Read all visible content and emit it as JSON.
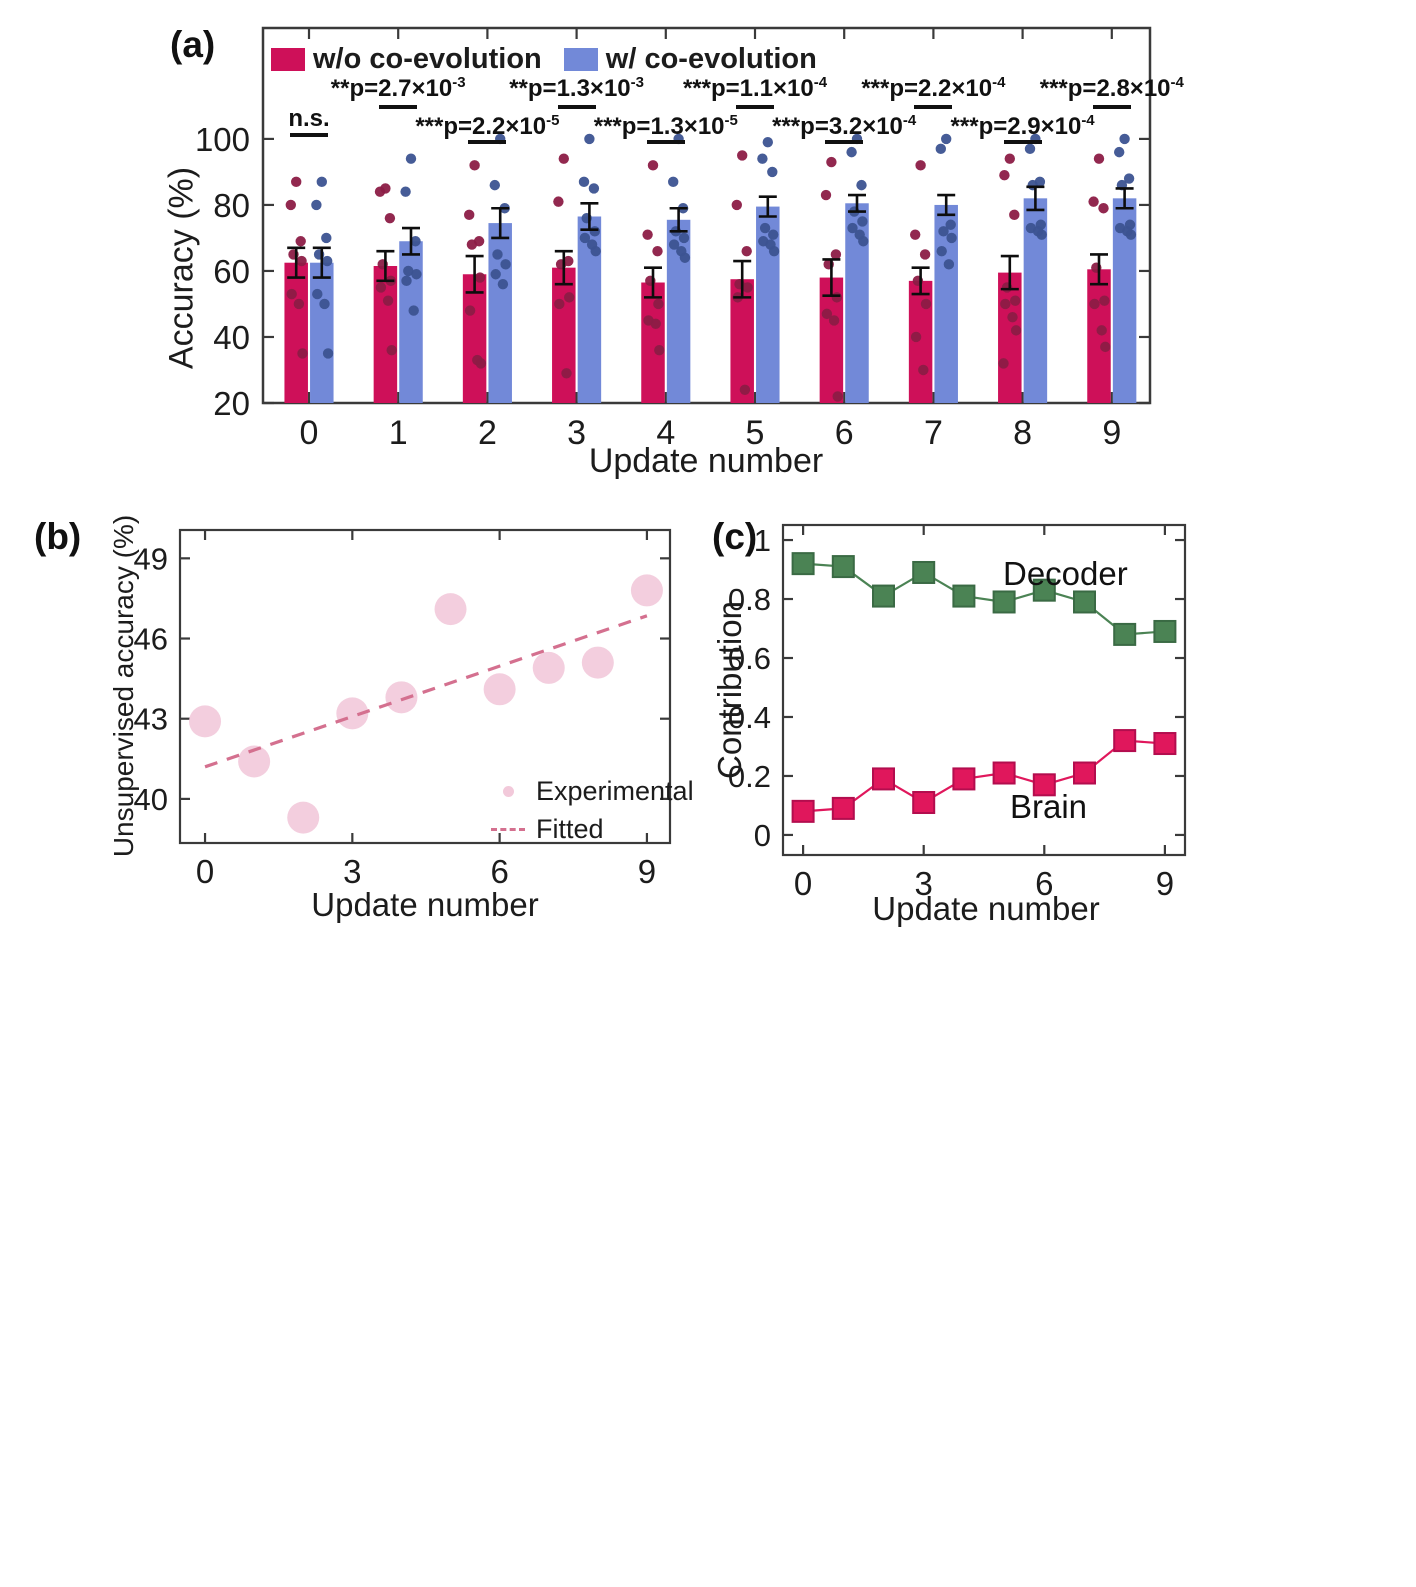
{
  "figure": {
    "panel_a_label": "(a)",
    "panel_b_label": "(b)",
    "panel_c_label": "(c)"
  },
  "chart_data": [
    {
      "id": "a",
      "type": "bar",
      "title": "",
      "xlabel": "Update number",
      "ylabel": "Accuracy (%)",
      "categories": [
        "0",
        "1",
        "2",
        "3",
        "4",
        "5",
        "6",
        "7",
        "8",
        "9"
      ],
      "yticks": [
        20,
        40,
        60,
        80,
        100
      ],
      "axis": {
        "ymin": 20,
        "ymax": 133.6
      },
      "grid": false,
      "legend_position": "top-left-inside",
      "series": [
        {
          "key": "wo-coevolution",
          "name": "w/o co-evolution",
          "color": "#ce1059",
          "dot_color": "#8c1c46",
          "means": [
            62.5,
            61.5,
            59,
            61,
            56.5,
            57.5,
            58,
            57,
            59.5,
            60.5
          ],
          "err": [
            4.5,
            4.5,
            5.5,
            5,
            4.5,
            5.5,
            5.5,
            4,
            5,
            4.5
          ],
          "dots": [
            [
              87,
              80,
              69,
              65,
              63,
              53,
              50,
              35
            ],
            [
              85,
              84,
              76,
              62,
              57,
              55,
              51,
              36
            ],
            [
              92,
              77,
              69,
              68,
              58,
              48,
              33,
              32
            ],
            [
              94,
              81,
              63,
              62,
              52,
              50,
              29
            ],
            [
              92,
              71,
              66,
              57,
              50,
              45,
              44,
              36
            ],
            [
              95,
              80,
              66,
              56,
              55,
              52,
              24
            ],
            [
              93,
              83,
              65,
              62,
              52,
              47,
              45,
              22
            ],
            [
              92,
              71,
              65,
              57,
              50,
              40,
              30
            ],
            [
              94,
              89,
              77,
              55,
              51,
              50,
              46,
              42,
              32
            ],
            [
              94,
              81,
              79,
              61,
              51,
              50,
              42,
              37
            ]
          ]
        },
        {
          "key": "w-coevolution",
          "name": "w/ co-evolution",
          "color": "#7289d8",
          "dot_color": "#3c5391",
          "means": [
            62.5,
            69,
            74.5,
            76.5,
            75.5,
            79.5,
            80.5,
            80,
            82,
            82
          ],
          "err": [
            4.5,
            4,
            4.5,
            4,
            3.5,
            3,
            2.5,
            3,
            3.5,
            3
          ],
          "dots": [
            [
              87,
              80,
              70,
              65,
              63,
              53,
              50,
              35
            ],
            [
              94,
              84,
              69,
              60,
              59,
              57,
              48
            ],
            [
              100,
              86,
              79,
              65,
              62,
              59,
              56
            ],
            [
              100,
              87,
              85,
              76,
              72,
              70,
              68,
              66
            ],
            [
              100,
              87,
              79,
              72,
              70,
              68,
              66,
              64
            ],
            [
              99,
              94,
              90,
              73,
              71,
              69,
              68,
              66
            ],
            [
              100,
              96,
              86,
              78,
              75,
              73,
              71,
              69
            ],
            [
              100,
              97,
              74,
              72,
              70,
              66,
              62
            ],
            [
              100,
              97,
              87,
              86,
              74,
              73,
              72,
              71
            ],
            [
              100,
              96,
              88,
              86,
              74,
              73,
              72,
              71
            ]
          ]
        }
      ],
      "annotations": [
        {
          "cat": 0,
          "row": "low",
          "dy": -7,
          "stars": "",
          "body": "n.s.",
          "exp": ""
        },
        {
          "cat": 1,
          "row": "high",
          "dy": 0,
          "stars": "**",
          "body": "p=2.7×10",
          "exp": "-3"
        },
        {
          "cat": 2,
          "row": "low",
          "dy": 0,
          "stars": "***",
          "body": "p=2.2×10",
          "exp": "-5"
        },
        {
          "cat": 3,
          "row": "high",
          "dy": 0,
          "stars": "**",
          "body": "p=1.3×10",
          "exp": "-3"
        },
        {
          "cat": 4,
          "row": "low",
          "dy": 0,
          "stars": "***",
          "body": "p=1.3×10",
          "exp": "-5"
        },
        {
          "cat": 5,
          "row": "high",
          "dy": 0,
          "stars": "***",
          "body": "p=1.1×10",
          "exp": "-4"
        },
        {
          "cat": 6,
          "row": "low",
          "dy": 0,
          "stars": "***",
          "body": "p=3.2×10",
          "exp": "-4"
        },
        {
          "cat": 7,
          "row": "high",
          "dy": 0,
          "stars": "***",
          "body": "p=2.2×10",
          "exp": "-4"
        },
        {
          "cat": 8,
          "row": "low",
          "dy": 0,
          "stars": "***",
          "body": "p=2.9×10",
          "exp": "-4"
        },
        {
          "cat": 9,
          "row": "high",
          "dy": 0,
          "stars": "***",
          "body": "p=2.8×10",
          "exp": "-4"
        }
      ]
    },
    {
      "id": "b",
      "type": "scatter",
      "xlabel": "Update number",
      "ylabel": "Unsupervised accuracy (%)",
      "x": [
        0,
        1,
        2,
        3,
        4,
        5,
        6,
        7,
        8,
        9
      ],
      "y": [
        42.9,
        41.4,
        39.3,
        43.2,
        43.8,
        47.1,
        44.1,
        44.9,
        45.1,
        47.8
      ],
      "fit_line": {
        "x": [
          0,
          9
        ],
        "y": [
          41.2,
          46.85
        ]
      },
      "xticks": [
        0,
        3,
        6,
        9
      ],
      "yticks": [
        40,
        43,
        46,
        49
      ],
      "axis": {
        "xmin": -0.51,
        "xmax": 9.47,
        "ymin": 38.35,
        "ymax": 50.06
      },
      "grid": false,
      "point_color": "#f2c9da",
      "fit_color": "#d4708f",
      "legend_position": "bottom-right-inside",
      "legend": [
        {
          "label": "Experimental",
          "marker": "dot"
        },
        {
          "label": "Fitted",
          "marker": "dash"
        }
      ]
    },
    {
      "id": "c",
      "type": "line",
      "xlabel": "Update number",
      "ylabel": "Contribution",
      "x": [
        0,
        1,
        2,
        3,
        4,
        5,
        6,
        7,
        8,
        9
      ],
      "xticks": [
        0,
        3,
        6,
        9
      ],
      "yticks": [
        0,
        0.2,
        0.4,
        0.6,
        0.8,
        1
      ],
      "ytick_labels": [
        "0",
        "0.2",
        "0.4",
        "0.6",
        "0.8",
        "1"
      ],
      "axis": {
        "xmin": -0.5,
        "xmax": 9.5,
        "ymin": -0.068,
        "ymax": 1.051
      },
      "grid": false,
      "series": [
        {
          "name": "Decoder",
          "color": "#4b8354",
          "edge": "#3a6a44",
          "values": [
            0.92,
            0.91,
            0.81,
            0.89,
            0.81,
            0.79,
            0.83,
            0.79,
            0.68,
            0.69
          ]
        },
        {
          "name": "Brain",
          "color": "#e0175c",
          "edge": "#b30d4e",
          "values": [
            0.08,
            0.09,
            0.19,
            0.11,
            0.19,
            0.21,
            0.17,
            0.21,
            0.32,
            0.31
          ]
        }
      ]
    }
  ]
}
